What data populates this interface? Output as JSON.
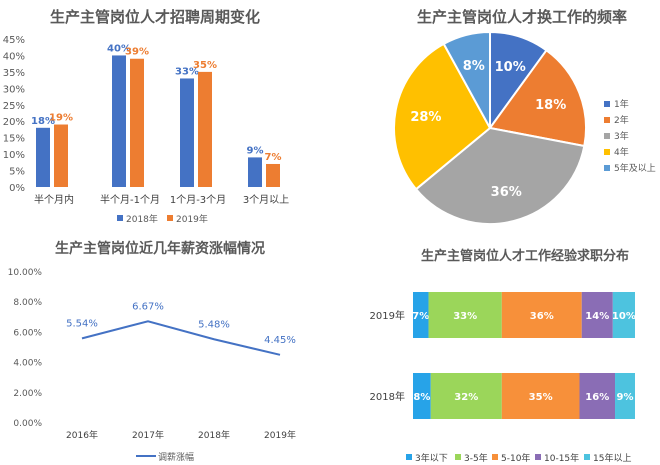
{
  "chart_data": [
    {
      "type": "bar",
      "title": "生产主管岗位人才招聘周期变化",
      "categories": [
        "半个月内",
        "半个月-1个月",
        "1个月-3个月",
        "3个月以上"
      ],
      "series": [
        {
          "name": "2018年",
          "values": [
            18,
            40,
            33,
            9
          ],
          "labels": [
            "18%",
            "40%",
            "33%",
            "9%"
          ],
          "color": "#4472C4"
        },
        {
          "name": "2019年",
          "values": [
            19,
            39,
            35,
            7
          ],
          "labels": [
            "19%",
            "39%",
            "35%",
            "7%"
          ],
          "color": "#ED7D31"
        }
      ],
      "ylim": [
        0,
        45
      ],
      "yticks": [
        "0%",
        "5%",
        "10%",
        "15%",
        "20%",
        "25%",
        "30%",
        "35%",
        "40%",
        "45%"
      ],
      "grid": false,
      "legend": "bottom"
    },
    {
      "type": "pie",
      "title": "生产主管岗位人才换工作的频率",
      "categories": [
        "1年",
        "2年",
        "3年",
        "4年",
        "5年及以上"
      ],
      "values": [
        10,
        18,
        36,
        28,
        8
      ],
      "labels": [
        "10%",
        "18%",
        "36%",
        "28%",
        "8%"
      ],
      "colors": [
        "#4472C4",
        "#ED7D31",
        "#A5A5A5",
        "#FFC000",
        "#5B9BD5"
      ],
      "legend": "right"
    },
    {
      "type": "line",
      "title": "生产主管岗位近几年薪资涨幅情况",
      "x": [
        "2016年",
        "2017年",
        "2018年",
        "2019年"
      ],
      "series": [
        {
          "name": "调薪涨幅",
          "values": [
            5.54,
            6.67,
            5.48,
            4.45
          ],
          "labels": [
            "5.54%",
            "6.67%",
            "5.48%",
            "4.45%"
          ],
          "color": "#4472C4"
        }
      ],
      "ylim": [
        0,
        10
      ],
      "yticks": [
        "0.00%",
        "2.00%",
        "4.00%",
        "6.00%",
        "8.00%",
        "10.00%"
      ],
      "grid": false,
      "legend": "bottom"
    },
    {
      "type": "bar",
      "stacked": "100%",
      "orientation": "horizontal",
      "title": "生产主管岗位人才工作经验求职分布",
      "categories": [
        "2019年",
        "2018年"
      ],
      "series": [
        {
          "name": "3年以下",
          "values": [
            7,
            8
          ],
          "labels": [
            "7%",
            "8%"
          ],
          "color": "#27A3E8"
        },
        {
          "name": "3-5年",
          "values": [
            33,
            32
          ],
          "labels": [
            "33%",
            "32%"
          ],
          "color": "#9BD65A"
        },
        {
          "name": "5-10年",
          "values": [
            36,
            35
          ],
          "labels": [
            "36%",
            "35%"
          ],
          "color": "#F7903A"
        },
        {
          "name": "10-15年",
          "values": [
            14,
            16
          ],
          "labels": [
            "14%",
            "16%"
          ],
          "color": "#8A6DB5"
        },
        {
          "name": "15年以上",
          "values": [
            10,
            9
          ],
          "labels": [
            "10%",
            "9%"
          ],
          "color": "#4DC3DF"
        }
      ],
      "legend": "bottom"
    }
  ]
}
